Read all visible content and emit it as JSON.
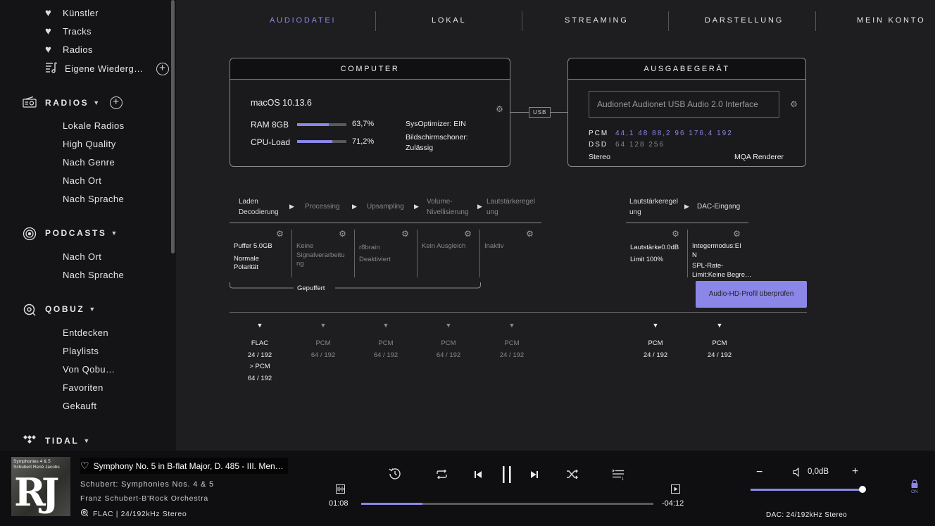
{
  "sidebar": {
    "favorites": [
      {
        "label": "Künstler",
        "icon": "heart-icon"
      },
      {
        "label": "Tracks",
        "icon": "heart-icon"
      },
      {
        "label": "Radios",
        "icon": "heart-icon"
      },
      {
        "label": "Eigene Wiederg…",
        "icon": "playlist-icon"
      }
    ],
    "radios": {
      "title": "RADIOS",
      "items": [
        "Lokale Radios",
        "High Quality",
        "Nach Genre",
        "Nach Ort",
        "Nach Sprache"
      ]
    },
    "podcasts": {
      "title": "PODCASTS",
      "items": [
        "Nach Ort",
        "Nach Sprache"
      ]
    },
    "qobuz": {
      "title": "QOBUZ",
      "items": [
        "Entdecken",
        "Playlists",
        "Von Qobu…",
        "Favoriten",
        "Gekauft"
      ]
    },
    "tidal": {
      "title": "TIDAL"
    }
  },
  "tabs": [
    {
      "label": "AUDIODATEI",
      "active": true
    },
    {
      "label": "LOKAL",
      "active": false
    },
    {
      "label": "STREAMING",
      "active": false
    },
    {
      "label": "DARSTELLUNG",
      "active": false
    },
    {
      "label": "MEIN KONTO",
      "active": false
    }
  ],
  "computer": {
    "title": "COMPUTER",
    "os": "macOS 10.13.6",
    "ram_label": "RAM 8GB",
    "ram_value": "63,7%",
    "ram_fraction": 0.637,
    "cpu_label": "CPU-Load",
    "cpu_value": "71,2%",
    "cpu_fraction": 0.712,
    "sysopt": "SysOptimizer: EIN",
    "screensaver_1": "Bildschirmschoner:",
    "screensaver_2": "Zulässig"
  },
  "usb_label": "USB",
  "output": {
    "title": "AUSGABEGERÄT",
    "device": "Audionet  Audionet USB Audio 2.0 Interface",
    "pcm_label": "PCM",
    "pcm_rates": "44,1 48 88,2 96 176,4 192",
    "dsd_label": "DSD",
    "dsd_rates": "64 128 256",
    "channels": "Stereo",
    "mqa": "MQA Renderer"
  },
  "chain": {
    "steps": [
      {
        "line1": "Laden",
        "line2": "Decodierung",
        "active": true
      },
      {
        "line1": "Processing",
        "line2": "",
        "active": false
      },
      {
        "line1": "Upsampling",
        "line2": "",
        "active": false
      },
      {
        "line1": "Volume-",
        "line2": "Nivellisierung",
        "active": false
      },
      {
        "line1": "Lautstärkeregel",
        "line2": "ung",
        "active": false
      }
    ],
    "dac_steps": [
      {
        "line1": "Lautstärkeregel",
        "line2": "ung",
        "active": true
      },
      {
        "line1": "DAC-Eingang",
        "line2": "",
        "active": true
      }
    ],
    "cells": [
      {
        "lines": [
          "Puffer 5.0GB",
          "",
          "Normale",
          "Polarität"
        ],
        "active": true
      },
      {
        "lines": [
          "Keine",
          "Signalverarbeitu",
          "ng"
        ],
        "active": false
      },
      {
        "lines": [
          "r8brain",
          "Deaktiviert"
        ],
        "active": false
      },
      {
        "lines": [
          "Kein Ausgleich"
        ],
        "active": false
      },
      {
        "lines": [
          "Inaktiv"
        ],
        "active": false
      }
    ],
    "dac_cells": [
      {
        "lines": [
          "Lautstärke0.0dB",
          "Limit 100%"
        ],
        "active": true
      },
      {
        "lines": [
          "Integermodus:EI",
          "N",
          "SPL-Rate-",
          "Limit:Keine Begre…"
        ],
        "active": true
      }
    ],
    "buffered_label": "Gepuffert",
    "hd_button": "Audio-HD-Profil überprüfen"
  },
  "formats": [
    {
      "lines": [
        "FLAC",
        "24 / 192",
        "> PCM",
        "64 / 192"
      ],
      "active": true
    },
    {
      "lines": [
        "PCM",
        "64 / 192"
      ],
      "active": false
    },
    {
      "lines": [
        "PCM",
        "64 / 192"
      ],
      "active": false
    },
    {
      "lines": [
        "PCM",
        "64 / 192"
      ],
      "active": false
    },
    {
      "lines": [
        "PCM",
        "24 / 192"
      ],
      "active": false
    },
    {
      "lines": [
        "PCM",
        "24 / 192"
      ],
      "active": true
    },
    {
      "lines": [
        "PCM",
        "24 / 192"
      ],
      "active": true
    }
  ],
  "player": {
    "cover_text_1": "Symphonies 4 & 5",
    "cover_text_2": "Schubert René Jacobs",
    "cover_logo": "RJ",
    "title": "Symphony No. 5 in B-flat Major, D. 485 - III. Men…",
    "album": "Schubert: Symphonies Nos.  4 & 5",
    "artist": "Franz Schubert-B'Rock Orchestra",
    "format": "FLAC | 24/192kHz Stereo",
    "elapsed": "01:08",
    "remaining": "-04:12",
    "progress": 0.21,
    "volume_label": "0,0dB",
    "volume_fraction": 1.0,
    "dac": "DAC: 24/192kHz Stereo",
    "lock_label": "ON",
    "accent": "#8b87e8"
  }
}
